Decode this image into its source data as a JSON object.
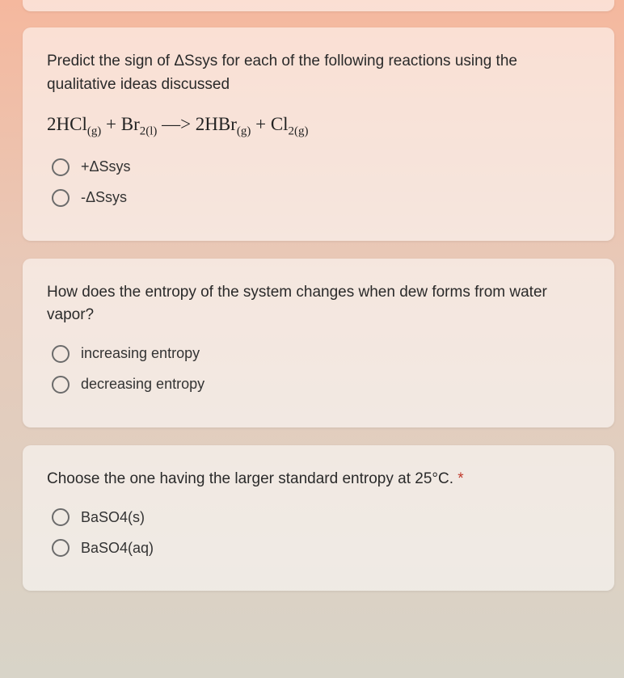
{
  "colors": {
    "bg_top": "#f5b89e",
    "bg_mid": "#e8c9b8",
    "bg_bottom": "#d8d4c8",
    "card_bg": "rgba(255,255,255,0.55)",
    "text": "#2a2a2a",
    "radio_border": "#6b6b6b"
  },
  "q1": {
    "prompt": "Predict the sign of ΔSsys for each of the following reactions using the qualitative ideas discussed",
    "equation_html": "2HCl<sub>(g)</sub> + Br<sub>2(l)</sub> —> 2HBr<sub>(g)</sub> + Cl<sub>2(g)</sub>",
    "options": [
      "+ΔSsys",
      "-ΔSsys"
    ]
  },
  "q2": {
    "prompt": "How does the entropy of the system changes when dew forms from water vapor?",
    "options": [
      "increasing entropy",
      "decreasing entropy"
    ]
  },
  "q3": {
    "prompt": "Choose the one having the larger standard entropy at 25°C.",
    "required_marker": "*",
    "options": [
      "BaSO4(s)",
      "BaSO4(aq)"
    ]
  }
}
